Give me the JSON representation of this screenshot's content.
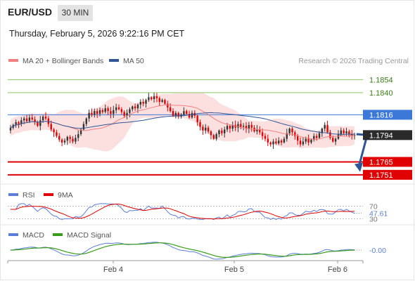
{
  "header": {
    "pair": "EUR/USD",
    "timeframe": "30 MIN",
    "datetime": "Thursday, February 5, 2026 9:22:16 PM CET"
  },
  "main_legend": {
    "items": [
      {
        "label": "MA 20 + Bollinger Bands",
        "color": "#f08080"
      },
      {
        "label": "MA 50",
        "color": "#2f5597"
      }
    ],
    "watermark": "Research © 2026 Trading Central"
  },
  "rsi_legend": {
    "items": [
      {
        "label": "RSI",
        "color": "#5b7fd6"
      },
      {
        "label": "9MA",
        "color": "#e00000"
      }
    ]
  },
  "macd_legend": {
    "items": [
      {
        "label": "MACD",
        "color": "#5b7fd6"
      },
      {
        "label": "MACD Signal",
        "color": "#3a9d1a"
      }
    ]
  },
  "chart_data": [
    {
      "type": "candlestick",
      "ylim": [
        1.1741,
        1.1868
      ],
      "levels": [
        {
          "value": 1.1854,
          "label": "1.1854",
          "style": "green-line"
        },
        {
          "value": 1.184,
          "label": "1.1840",
          "style": "green-line"
        },
        {
          "value": 1.1816,
          "label": "1.1816",
          "style": "blue-line-badge"
        },
        {
          "value": 1.1794,
          "label": "1.1794",
          "style": "current-price-badge"
        },
        {
          "value": 1.1765,
          "label": "1.1765",
          "style": "red-line-badge"
        },
        {
          "value": 1.1751,
          "label": "1.1751",
          "style": "red-line-badge"
        }
      ],
      "forecast_arrow": {
        "from": 1.1795,
        "to": 1.1755,
        "color": "#2f5597"
      },
      "x_ticks": [
        "Feb 4",
        "Feb 5",
        "Feb 6"
      ],
      "close": [
        1.1802,
        1.1805,
        1.1808,
        1.1806,
        1.181,
        1.1812,
        1.1809,
        1.1813,
        1.1811,
        1.1808,
        1.1804,
        1.181,
        1.1814,
        1.1812,
        1.1806,
        1.18,
        1.1797,
        1.1793,
        1.1789,
        1.1786,
        1.1788,
        1.1792,
        1.179,
        1.1787,
        1.1791,
        1.1795,
        1.18,
        1.1806,
        1.1812,
        1.1818,
        1.1816,
        1.182,
        1.1817,
        1.1821,
        1.1819,
        1.1823,
        1.182,
        1.1817,
        1.1821,
        1.1824,
        1.1822,
        1.1819,
        1.1815,
        1.1818,
        1.1822,
        1.1825,
        1.1823,
        1.1827,
        1.183,
        1.1828,
        1.1832,
        1.1835,
        1.1833,
        1.1836,
        1.1834,
        1.183,
        1.1832,
        1.1828,
        1.1824,
        1.182,
        1.1815,
        1.1818,
        1.1814,
        1.1816,
        1.182,
        1.1817,
        1.1813,
        1.1818,
        1.1815,
        1.1808,
        1.1803,
        1.1799,
        1.1802,
        1.1798,
        1.1794,
        1.179,
        1.1795,
        1.1799,
        1.1796,
        1.18,
        1.1804,
        1.1801,
        1.1805,
        1.1802,
        1.1806,
        1.1803,
        1.1804,
        1.1801,
        1.1805,
        1.1802,
        1.1798,
        1.18,
        1.1797,
        1.1793,
        1.179,
        1.1786,
        1.1784,
        1.1787,
        1.1785,
        1.1788,
        1.1786,
        1.179,
        1.1796,
        1.1801,
        1.1797,
        1.1793,
        1.1788,
        1.1784,
        1.1787,
        1.179,
        1.1786,
        1.1789,
        1.1793,
        1.1791,
        1.1796,
        1.1801,
        1.1805,
        1.1797,
        1.1791,
        1.1787,
        1.179,
        1.1795,
        1.1799,
        1.1796,
        1.1798,
        1.1795,
        1.1794,
        1.1794
      ],
      "rsi": {
        "levels": [
          70,
          30
        ],
        "current": 47.61,
        "current_label": "47.61",
        "level_labels": [
          "70",
          "30"
        ]
      },
      "macd": {
        "current": -0.0,
        "current_label": "-0.00"
      }
    }
  ]
}
